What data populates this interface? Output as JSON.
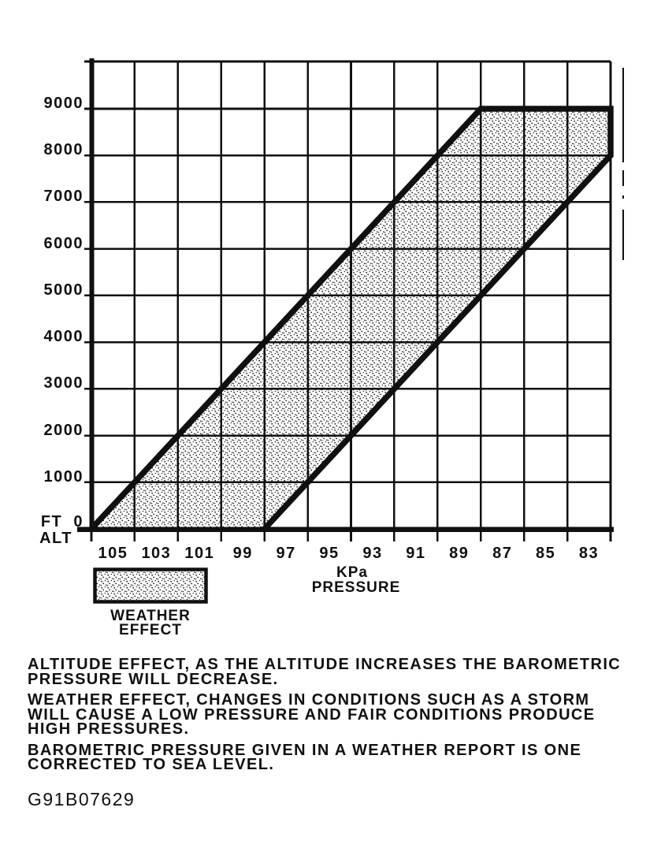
{
  "colors": {
    "ink": "#101010",
    "paper": "#ffffff"
  },
  "chart_data": {
    "type": "area",
    "title": "",
    "xlabel": "KPa PRESSURE",
    "ylabel": "FT ALT",
    "grid": true,
    "x_axis": {
      "unit_line1": "KPa",
      "unit_line2": "PRESSURE",
      "tick_labels": [
        "105",
        "103",
        "101",
        "99",
        "97",
        "95",
        "93",
        "91",
        "89",
        "87",
        "85",
        "83"
      ],
      "gridlines_kpa": [
        106,
        104,
        102,
        100,
        98,
        96,
        94,
        92,
        90,
        88,
        86,
        84,
        82
      ],
      "range_kpa": [
        106,
        82
      ],
      "direction": "values decrease to the right"
    },
    "y_axis": {
      "tick_labels": [
        "9000",
        "8000",
        "7000",
        "6000",
        "5000",
        "4000",
        "3000",
        "2000",
        "1000"
      ],
      "gridlines_ft": [
        0,
        1000,
        2000,
        3000,
        4000,
        5000,
        6000,
        7000,
        8000,
        9000
      ],
      "zero_label": "FT  0",
      "axis_label": "ALT",
      "range_ft": [
        0,
        10000
      ]
    },
    "band": {
      "name": "WEATHER EFFECT",
      "slope_ft_per_kpa": 500,
      "cap_altitude_ft": 9000,
      "polygon_kpa_ft": [
        [
          106,
          0
        ],
        [
          88,
          9000
        ],
        [
          82,
          9000
        ],
        [
          82,
          8000
        ],
        [
          98,
          0
        ]
      ],
      "outline_kpa_ft": [
        [
          106,
          0
        ],
        [
          88,
          9000
        ],
        [
          82,
          9000
        ],
        [
          82,
          8000
        ],
        [
          98,
          0
        ]
      ],
      "series": [
        {
          "name": "high-pressure boundary",
          "points_kpa_ft": [
            [
              106,
              0
            ],
            [
              104,
              1000
            ],
            [
              102,
              2000
            ],
            [
              100,
              3000
            ],
            [
              98,
              4000
            ],
            [
              96,
              5000
            ],
            [
              94,
              6000
            ],
            [
              92,
              7000
            ],
            [
              90,
              8000
            ],
            [
              88,
              9000
            ],
            [
              82,
              9000
            ]
          ]
        },
        {
          "name": "low-pressure boundary",
          "points_kpa_ft": [
            [
              98,
              0
            ],
            [
              96,
              1000
            ],
            [
              94,
              2000
            ],
            [
              92,
              3000
            ],
            [
              90,
              4000
            ],
            [
              88,
              5000
            ],
            [
              86,
              6000
            ],
            [
              84,
              7000
            ],
            [
              82,
              8000
            ]
          ]
        }
      ]
    },
    "legend": {
      "swatch": "stipple-fill",
      "label_line1": "WEATHER",
      "label_line2": "EFFECT",
      "position": "below-left of plot"
    }
  },
  "notes": {
    "lines": [
      "ALTITUDE EFFECT, AS THE ALTITUDE INCREASES THE BAROMETRIC",
      "PRESSURE WILL DECREASE.",
      "WEATHER EFFECT, CHANGES IN CONDITIONS SUCH AS A STORM",
      "WILL CAUSE A LOW PRESSURE AND FAIR CONDITIONS PRODUCE",
      "HIGH PRESSURES.",
      "BAROMETRIC PRESSURE GIVEN IN A WEATHER REPORT IS ONE",
      "CORRECTED TO SEA LEVEL."
    ]
  },
  "figure_id": "G91B07629"
}
